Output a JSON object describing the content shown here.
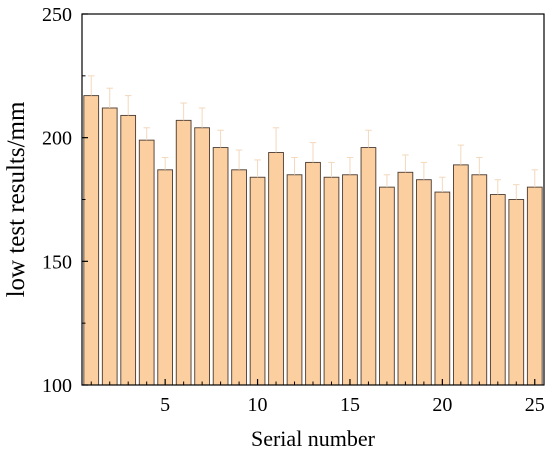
{
  "chart_data": {
    "type": "bar",
    "title": "",
    "xlabel": "Serial number",
    "ylabel": "low test results/mm",
    "categories": [
      1,
      2,
      3,
      4,
      5,
      6,
      7,
      8,
      9,
      10,
      11,
      12,
      13,
      14,
      15,
      16,
      17,
      18,
      19,
      20,
      21,
      22,
      23,
      24,
      25
    ],
    "series": [
      {
        "values": [
          217,
          212,
          209,
          199,
          187,
          207,
          204,
          196,
          187,
          184,
          194,
          185,
          190,
          184,
          185,
          196,
          180,
          186,
          183,
          178,
          189,
          185,
          177,
          175,
          180
        ],
        "error": [
          8,
          8,
          8,
          5,
          5,
          7,
          8,
          7,
          8,
          7,
          10,
          7,
          8,
          6,
          7,
          7,
          5,
          7,
          7,
          6,
          8,
          7,
          6,
          6,
          7
        ]
      }
    ],
    "ylim": [
      100,
      250
    ],
    "yticks": [
      100,
      150,
      200,
      250
    ],
    "xticks": [
      5,
      10,
      15,
      20,
      25
    ],
    "grid": false,
    "colors": {
      "bar_fill": "#fccfa0",
      "bar_stroke": "#4a3a30",
      "error_bar": "#f3d8bc",
      "axis": "#000000"
    }
  }
}
